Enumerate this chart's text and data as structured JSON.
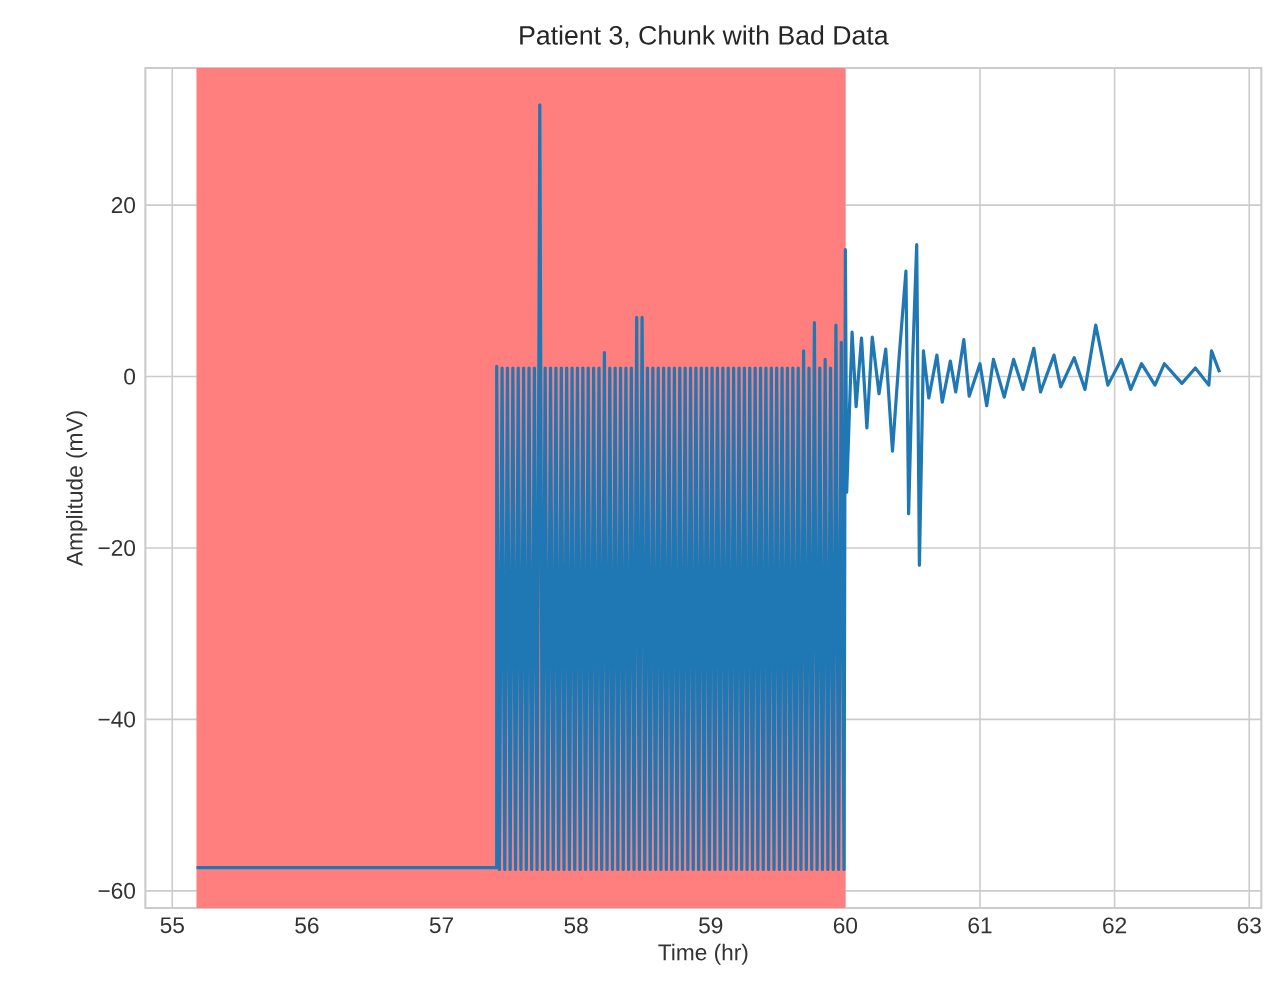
{
  "chart_data": {
    "type": "line",
    "title": "Patient 3, Chunk with Bad Data",
    "xlabel": "Time (hr)",
    "ylabel": "Amplitude (mV)",
    "xlim": [
      54.8,
      63.09
    ],
    "ylim": [
      -62,
      36
    ],
    "xticks": [
      55,
      56,
      57,
      58,
      59,
      60,
      61,
      62,
      63
    ],
    "yticks": [
      {
        "value": -60,
        "label": "−60"
      },
      {
        "value": -40,
        "label": "−40"
      },
      {
        "value": -20,
        "label": "−20"
      },
      0,
      20
    ],
    "grid": true,
    "bands": [
      {
        "axis": "x",
        "from": 55.18,
        "to": 60.0,
        "color": "#ff7f7f"
      }
    ],
    "series": [
      {
        "color": "#1f77b4",
        "x": [
          55.18,
          57.41,
          57.41,
          57.43,
          57.45,
          57.47,
          57.49,
          57.51,
          57.53,
          57.55,
          57.57,
          57.59,
          57.61,
          57.63,
          57.65,
          57.67,
          57.69,
          57.71,
          57.73,
          57.75,
          57.77,
          57.79,
          57.81,
          57.83,
          57.85,
          57.87,
          57.89,
          57.91,
          57.93,
          57.95,
          57.97,
          57.99,
          58.01,
          58.03,
          58.05,
          58.07,
          58.09,
          58.11,
          58.13,
          58.15,
          58.17,
          58.19,
          58.21,
          58.23,
          58.25,
          58.27,
          58.29,
          58.31,
          58.33,
          58.35,
          58.37,
          58.39,
          58.41,
          58.43,
          58.45,
          58.47,
          58.49,
          58.51,
          58.53,
          58.55,
          58.57,
          58.59,
          58.61,
          58.63,
          58.65,
          58.67,
          58.69,
          58.71,
          58.73,
          58.75,
          58.77,
          58.79,
          58.81,
          58.83,
          58.85,
          58.87,
          58.89,
          58.91,
          58.93,
          58.95,
          58.97,
          58.99,
          59.01,
          59.03,
          59.05,
          59.07,
          59.09,
          59.11,
          59.13,
          59.15,
          59.17,
          59.19,
          59.21,
          59.23,
          59.25,
          59.27,
          59.29,
          59.31,
          59.33,
          59.35,
          59.37,
          59.39,
          59.41,
          59.43,
          59.45,
          59.47,
          59.49,
          59.51,
          59.53,
          59.55,
          59.57,
          59.59,
          59.61,
          59.63,
          59.65,
          59.67,
          59.69,
          59.71,
          59.73,
          59.75,
          59.77,
          59.79,
          59.81,
          59.83,
          59.85,
          59.87,
          59.89,
          59.91,
          59.93,
          59.95,
          59.97,
          59.99,
          60.0,
          60.01,
          60.05,
          60.08,
          60.12,
          60.16,
          60.2,
          60.25,
          60.3,
          60.35,
          60.4,
          60.45,
          60.47,
          60.5,
          60.53,
          60.55,
          60.58,
          60.62,
          60.68,
          60.72,
          60.78,
          60.82,
          60.88,
          60.92,
          61.0,
          61.05,
          61.1,
          61.18,
          61.25,
          61.32,
          61.4,
          61.45,
          61.55,
          61.6,
          61.7,
          61.78,
          61.86,
          61.95,
          62.05,
          62.12,
          62.2,
          62.3,
          62.37,
          62.5,
          62.6,
          62.7,
          62.72,
          62.78
        ],
        "values": [
          -57.3,
          -57.3,
          1.2,
          -57.5,
          1.0,
          -57.5,
          1.0,
          -57.5,
          1.0,
          -57.5,
          1.0,
          -57.5,
          1.0,
          -57.5,
          1.0,
          -57.5,
          1.0,
          -57.5,
          31.7,
          -57.5,
          1.0,
          -57.5,
          1.0,
          -57.5,
          1.0,
          -57.5,
          1.0,
          -57.5,
          1.0,
          -57.5,
          1.0,
          -57.5,
          1.0,
          -57.5,
          1.0,
          -57.5,
          1.0,
          -57.5,
          1.0,
          -57.5,
          1.0,
          -57.5,
          2.8,
          -57.5,
          1.0,
          -57.5,
          1.0,
          -57.5,
          1.0,
          -57.5,
          1.0,
          -57.5,
          1.0,
          -57.5,
          6.9,
          -57.5,
          6.9,
          -57.5,
          1.0,
          -57.5,
          1.0,
          -57.5,
          1.0,
          -57.5,
          1.0,
          -57.5,
          1.0,
          -57.5,
          1.0,
          -57.5,
          1.0,
          -57.5,
          1.0,
          -57.5,
          1.0,
          -57.5,
          1.0,
          -57.5,
          1.0,
          -57.5,
          1.0,
          -57.5,
          1.0,
          -57.5,
          1.0,
          -57.5,
          1.0,
          -57.5,
          1.0,
          -57.5,
          1.0,
          -57.5,
          1.0,
          -57.5,
          1.0,
          -57.5,
          1.0,
          -57.5,
          1.0,
          -57.5,
          1.0,
          -57.5,
          1.0,
          -57.5,
          1.0,
          -57.5,
          1.0,
          -57.5,
          1.0,
          -57.5,
          1.0,
          -57.5,
          1.0,
          -57.5,
          1.0,
          -57.5,
          3.0,
          -57.5,
          1.0,
          -57.5,
          6.3,
          -57.5,
          1.0,
          -57.5,
          2.0,
          -57.5,
          1.0,
          -57.5,
          6.0,
          -57.5,
          4.0,
          -57.5,
          14.8,
          -13.5,
          5.2,
          -3.5,
          4.5,
          -6,
          4.6,
          -2,
          3.2,
          -8.7,
          2.4,
          12.3,
          -16,
          2,
          15.4,
          -22,
          3,
          -2.5,
          2.5,
          -3,
          1.8,
          -1.8,
          4.3,
          -2.3,
          1.5,
          -3.4,
          2.0,
          -2.4,
          2.0,
          -1.5,
          3.3,
          -1.8,
          2.5,
          -1.2,
          2.2,
          -1.5,
          6.0,
          -1.0,
          2.0,
          -1.5,
          1.5,
          -1.0,
          1.5,
          -0.8,
          1.0,
          -1.0,
          3.0,
          0.5
        ]
      }
    ]
  }
}
